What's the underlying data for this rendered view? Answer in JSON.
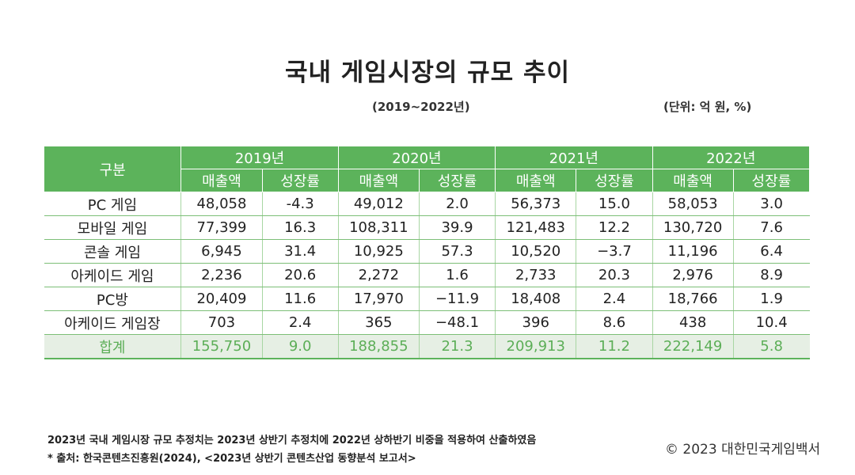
{
  "title": "국내 게임시장의 규모 추이",
  "period": "(2019~2022년)",
  "unit": "(단위: 억 원, %)",
  "table": {
    "corner_label": "구분",
    "years": [
      "2019년",
      "2020년",
      "2021년",
      "2022년"
    ],
    "subheaders": [
      "매출액",
      "성장률"
    ],
    "rows": [
      {
        "label": "PC 게임",
        "values": [
          "48,058",
          "-4.3",
          "49,012",
          "2.0",
          "56,373",
          "15.0",
          "58,053",
          "3.0"
        ]
      },
      {
        "label": "모바일 게임",
        "values": [
          "77,399",
          "16.3",
          "108,311",
          "39.9",
          "121,483",
          "12.2",
          "130,720",
          "7.6"
        ]
      },
      {
        "label": "콘솔 게임",
        "values": [
          "6,945",
          "31.4",
          "10,925",
          "57.3",
          "10,520",
          "−3.7",
          "11,196",
          "6.4"
        ]
      },
      {
        "label": "아케이드 게임",
        "values": [
          "2,236",
          "20.6",
          "2,272",
          "1.6",
          "2,733",
          "20.3",
          "2,976",
          "8.9"
        ]
      },
      {
        "label": "PC방",
        "values": [
          "20,409",
          "11.6",
          "17,970",
          "−11.9",
          "18,408",
          "2.4",
          "18,766",
          "1.9"
        ]
      },
      {
        "label": "아케이드 게임장",
        "values": [
          "703",
          "2.4",
          "365",
          "−48.1",
          "396",
          "8.6",
          "438",
          "10.4"
        ]
      }
    ],
    "total": {
      "label": "합계",
      "values": [
        "155,750",
        "9.0",
        "188,855",
        "21.3",
        "209,913",
        "11.2",
        "222,149",
        "5.8"
      ]
    }
  },
  "notes": [
    "2023년 국내 게임시장 규모 추정치는 2023년 상반기 추정치에 2022년 상하반기 비중을 적용하여 산출하였음",
    "* 출처: 한국콘텐츠진흥원(2024), <2023년 상반기 콘텐츠산업 동향분석 보고서>"
  ],
  "copyright": "© 2023 대한민국게임백서",
  "colors": {
    "header_green": "#5cb35b",
    "total_bg": "#e6efe4",
    "total_text": "#5cae57",
    "rule": "#7cbf77"
  }
}
